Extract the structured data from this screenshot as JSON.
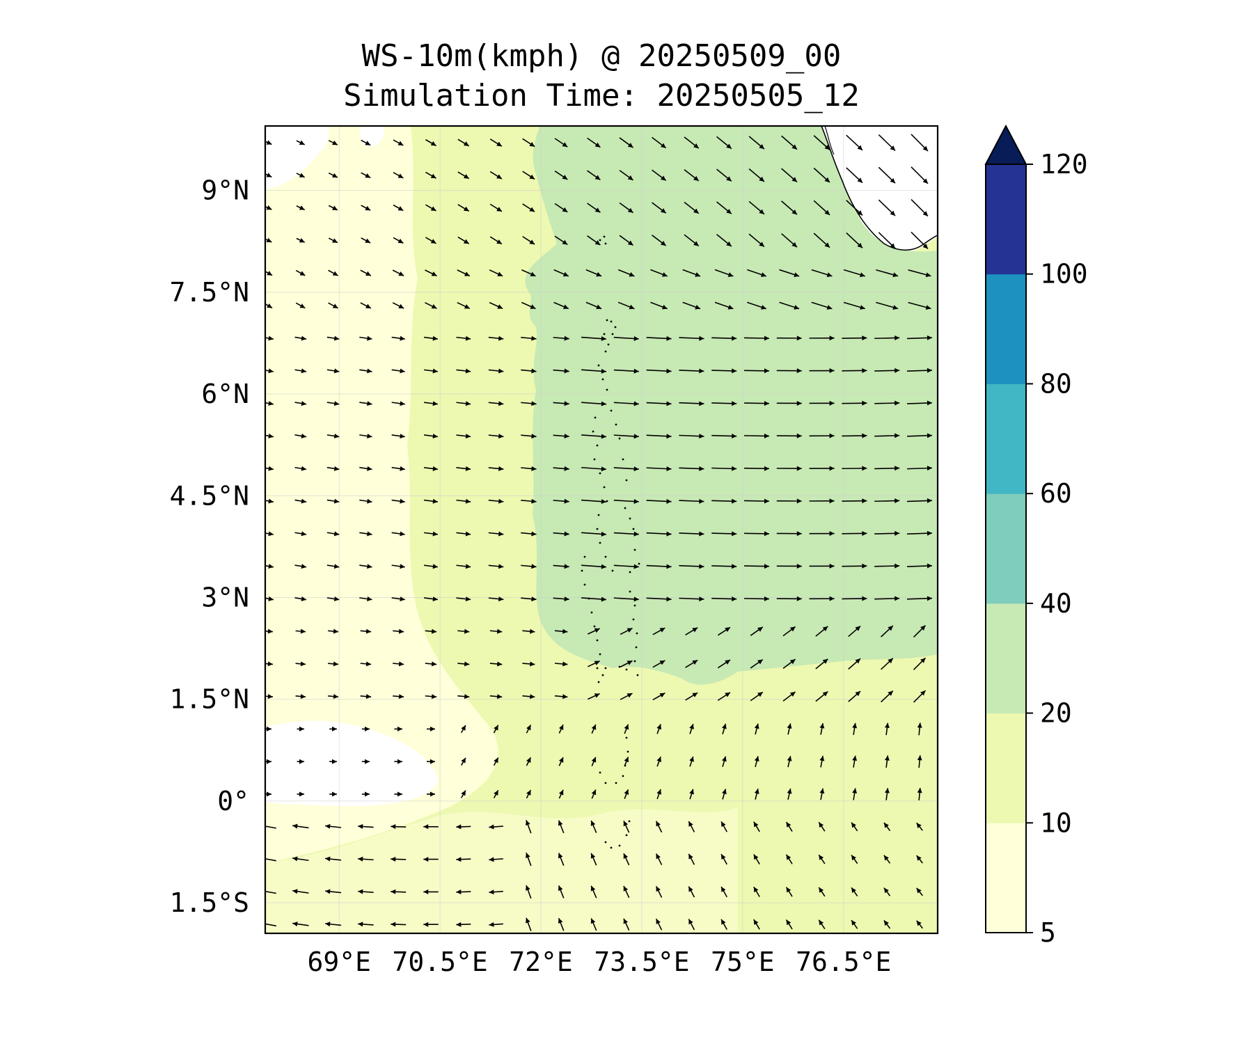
{
  "title_line1": "WS-10m(kmph) @ 20250509_00",
  "title_line2": "Simulation Time: 20250505_12",
  "map": {
    "lon_range": [
      67.9,
      77.9
    ],
    "lat_range": [
      -1.95,
      9.95
    ],
    "lat_ticks": [
      {
        "value": 9,
        "label": "9°N"
      },
      {
        "value": 7.5,
        "label": "7.5°N"
      },
      {
        "value": 6,
        "label": "6°N"
      },
      {
        "value": 4.5,
        "label": "4.5°N"
      },
      {
        "value": 3,
        "label": "3°N"
      },
      {
        "value": 1.5,
        "label": "1.5°N"
      },
      {
        "value": 0,
        "label": "0°"
      },
      {
        "value": -1.5,
        "label": "1.5°S"
      }
    ],
    "lon_ticks": [
      {
        "value": 69,
        "label": "69°E"
      },
      {
        "value": 70.5,
        "label": "70.5°E"
      },
      {
        "value": 72,
        "label": "72°E"
      },
      {
        "value": 73.5,
        "label": "73.5°E"
      },
      {
        "value": 75,
        "label": "75°E"
      },
      {
        "value": 76.5,
        "label": "76.5°E"
      }
    ],
    "gridlines": true,
    "field_bands": [
      {
        "range": "5-10",
        "color": "#ffffd9"
      },
      {
        "range": "10-20",
        "color": "#edf8b1"
      },
      {
        "range": "20-40",
        "color": "#c7e9b4"
      }
    ]
  },
  "colorbar": {
    "levels": [
      5,
      10,
      20,
      40,
      60,
      80,
      100,
      120
    ],
    "tick_labels": [
      "5",
      "10",
      "20",
      "40",
      "60",
      "80",
      "100",
      "120"
    ],
    "colors": [
      "#ffffd9",
      "#edf8b1",
      "#c7e9b4",
      "#7fcdbb",
      "#41b6c4",
      "#1d91c0",
      "#253494"
    ],
    "extend_max_color": "#081d58",
    "extend": "max"
  },
  "icons": {
    "wind_vector": "arrow-icon"
  }
}
